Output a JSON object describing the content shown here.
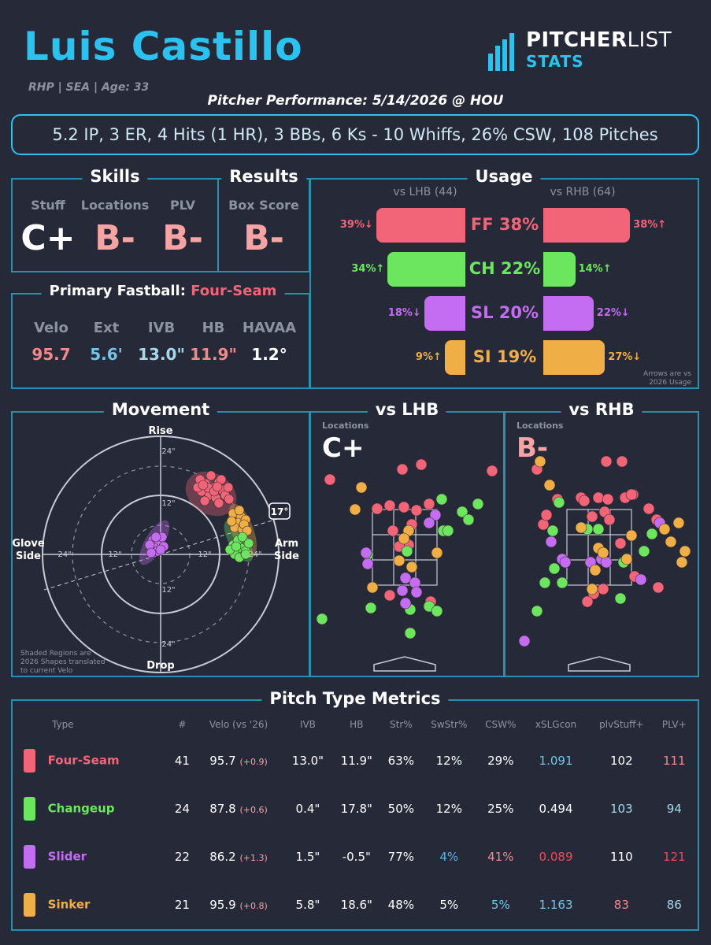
{
  "header": {
    "name": "Luis Castillo",
    "meta": "RHP | SEA | Age: 33",
    "performance": "Pitcher Performance: 5/14/2026 @ HOU",
    "summary": "5.2 IP, 3 ER, 4 Hits (1 HR), 3 BBs, 6 Ks - 10 Whiffs, 26% CSW, 108 Pitches",
    "logo_top": "PITCHER",
    "logo_top2": "LIST",
    "logo_bottom": "STATS"
  },
  "skills": {
    "title": "Skills",
    "stuff_label": "Stuff",
    "stuff_grade": "C+",
    "locations_label": "Locations",
    "locations_grade": "B-",
    "plv_label": "PLV",
    "plv_grade": "B-"
  },
  "results": {
    "title": "Results",
    "label": "Box Score",
    "grade": "B-"
  },
  "fastball": {
    "title": "Primary Fastball:",
    "pitch": "Four-Seam",
    "labels": [
      "Velo",
      "Ext",
      "IVB",
      "HB",
      "HAVAA"
    ],
    "values": [
      "95.7",
      "5.6'",
      "13.0\"",
      "11.9\"",
      "1.2°"
    ],
    "colors": [
      "#f08a8a",
      "#74c4e8",
      "#a8d7ea",
      "#f08a8a",
      "#ffffff"
    ]
  },
  "usage": {
    "title": "Usage",
    "lhb_label": "vs LHB (44)",
    "rhb_label": "vs RHB (64)",
    "note1": "Arrows are vs",
    "note2": "2026 Usage",
    "rows": [
      {
        "label": "FF 38%",
        "lhb": "39%↓",
        "rhb": "38%↑",
        "lhb_frac": 0.39,
        "rhb_frac": 0.38,
        "color": "#f26478"
      },
      {
        "label": "CH 22%",
        "lhb": "34%↑",
        "rhb": "14%↑",
        "lhb_frac": 0.34,
        "rhb_frac": 0.14,
        "color": "#6be65e"
      },
      {
        "label": "SL 20%",
        "lhb": "18%↓",
        "rhb": "22%↓",
        "lhb_frac": 0.18,
        "rhb_frac": 0.22,
        "color": "#c46cf2"
      },
      {
        "label": "SI 19%",
        "lhb": "9%↑",
        "rhb": "27%↓",
        "lhb_frac": 0.09,
        "rhb_frac": 0.27,
        "color": "#f0ae46"
      }
    ]
  },
  "movement": {
    "title": "Movement",
    "rise": "Rise",
    "drop": "Drop",
    "glove": "Glove",
    "glove2": "Side",
    "arm": "Arm",
    "arm2": "Side",
    "ring_labels": [
      "24\"",
      "12\"",
      "12\"",
      "24\"",
      "24\"",
      "12\"",
      "12\"",
      "24\""
    ],
    "angle": "17°",
    "note1": "Shaded Regions are",
    "note2": "2026 Shapes translated",
    "note3": "to current Velo"
  },
  "lhb_loc": {
    "title": "vs LHB",
    "label": "Locations",
    "grade": "C+"
  },
  "rhb_loc": {
    "title": "vs RHB",
    "label": "Locations",
    "grade": "B-"
  },
  "metrics": {
    "title": "Pitch Type Metrics",
    "headers": [
      "Type",
      "#",
      "Velo (vs '26)",
      "IVB",
      "HB",
      "Str%",
      "SwStr%",
      "CSW%",
      "xSLGcon",
      "plvStuff+",
      "PLV+"
    ],
    "rows": [
      {
        "name": "Four-Seam",
        "color": "#f26478",
        "n": "41",
        "velo": "95.7",
        "delta": "(+0.9)",
        "ivb": "13.0\"",
        "hb": "11.9\"",
        "str": "63%",
        "swstr": "12%",
        "csw": "29%",
        "xslg": "1.091",
        "stuff": "102",
        "plv": "111",
        "c_swstr": "#ffffff",
        "c_csw": "#ffffff",
        "c_xslg": "#74c4e8",
        "c_stuff": "#ffffff",
        "c_plv": "#f08a8a"
      },
      {
        "name": "Changeup",
        "color": "#6be65e",
        "n": "24",
        "velo": "87.8",
        "delta": "(+0.6)",
        "ivb": "0.4\"",
        "hb": "17.8\"",
        "str": "50%",
        "swstr": "12%",
        "csw": "25%",
        "xslg": "0.494",
        "stuff": "103",
        "plv": "94",
        "c_swstr": "#ffffff",
        "c_csw": "#ffffff",
        "c_xslg": "#ffffff",
        "c_stuff": "#a8d7ea",
        "c_plv": "#a8d7ea"
      },
      {
        "name": "Slider",
        "color": "#c46cf2",
        "n": "22",
        "velo": "86.2",
        "delta": "(+1.3)",
        "ivb": "1.5\"",
        "hb": "-0.5\"",
        "str": "77%",
        "swstr": "4%",
        "csw": "41%",
        "xslg": "0.089",
        "stuff": "110",
        "plv": "121",
        "c_swstr": "#4fb6e6",
        "c_csw": "#f08a8a",
        "c_xslg": "#ee4a5a",
        "c_stuff": "#ffffff",
        "c_plv": "#ee4a5a"
      },
      {
        "name": "Sinker",
        "color": "#f0ae46",
        "n": "21",
        "velo": "95.9",
        "delta": "(+0.8)",
        "ivb": "5.8\"",
        "hb": "18.6\"",
        "str": "48%",
        "swstr": "5%",
        "csw": "5%",
        "xslg": "1.163",
        "stuff": "83",
        "plv": "86",
        "c_swstr": "#ffffff",
        "c_csw": "#74c4e8",
        "c_xslg": "#74c4e8",
        "c_stuff": "#f08a8a",
        "c_plv": "#a8d7ea"
      }
    ]
  }
}
